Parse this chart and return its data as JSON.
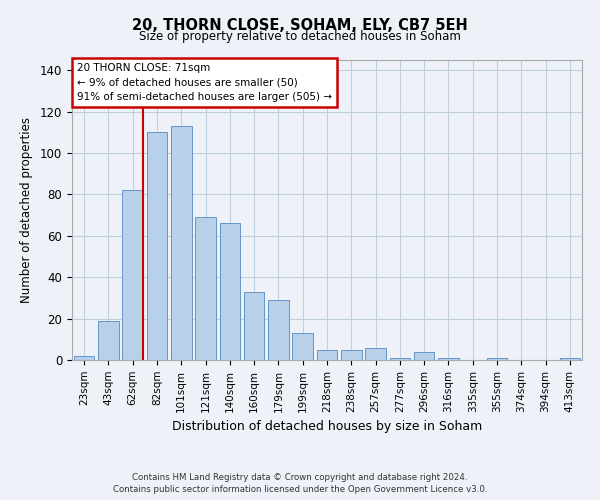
{
  "title1": "20, THORN CLOSE, SOHAM, ELY, CB7 5EH",
  "title2": "Size of property relative to detached houses in Soham",
  "xlabel": "Distribution of detached houses by size in Soham",
  "ylabel": "Number of detached properties",
  "bar_labels": [
    "23sqm",
    "43sqm",
    "62sqm",
    "82sqm",
    "101sqm",
    "121sqm",
    "140sqm",
    "160sqm",
    "179sqm",
    "199sqm",
    "218sqm",
    "238sqm",
    "257sqm",
    "277sqm",
    "296sqm",
    "316sqm",
    "335sqm",
    "355sqm",
    "374sqm",
    "394sqm",
    "413sqm"
  ],
  "bar_values": [
    2,
    19,
    82,
    110,
    113,
    69,
    66,
    33,
    29,
    13,
    5,
    5,
    6,
    1,
    4,
    1,
    0,
    1,
    0,
    0,
    1
  ],
  "bar_color": "#b8d0ea",
  "bar_edgecolor": "#6496c8",
  "vline_index": 2,
  "vline_color": "#cc0000",
  "ylim": [
    0,
    145
  ],
  "yticks": [
    0,
    20,
    40,
    60,
    80,
    100,
    120,
    140
  ],
  "annotation_title": "20 THORN CLOSE: 71sqm",
  "annotation_line1": "← 9% of detached houses are smaller (50)",
  "annotation_line2": "91% of semi-detached houses are larger (505) →",
  "annotation_box_facecolor": "#ffffff",
  "annotation_box_edgecolor": "#cc0000",
  "footer1": "Contains HM Land Registry data © Crown copyright and database right 2024.",
  "footer2": "Contains public sector information licensed under the Open Government Licence v3.0.",
  "background_color": "#eef2f8",
  "grid_color": "#c0cfe0"
}
